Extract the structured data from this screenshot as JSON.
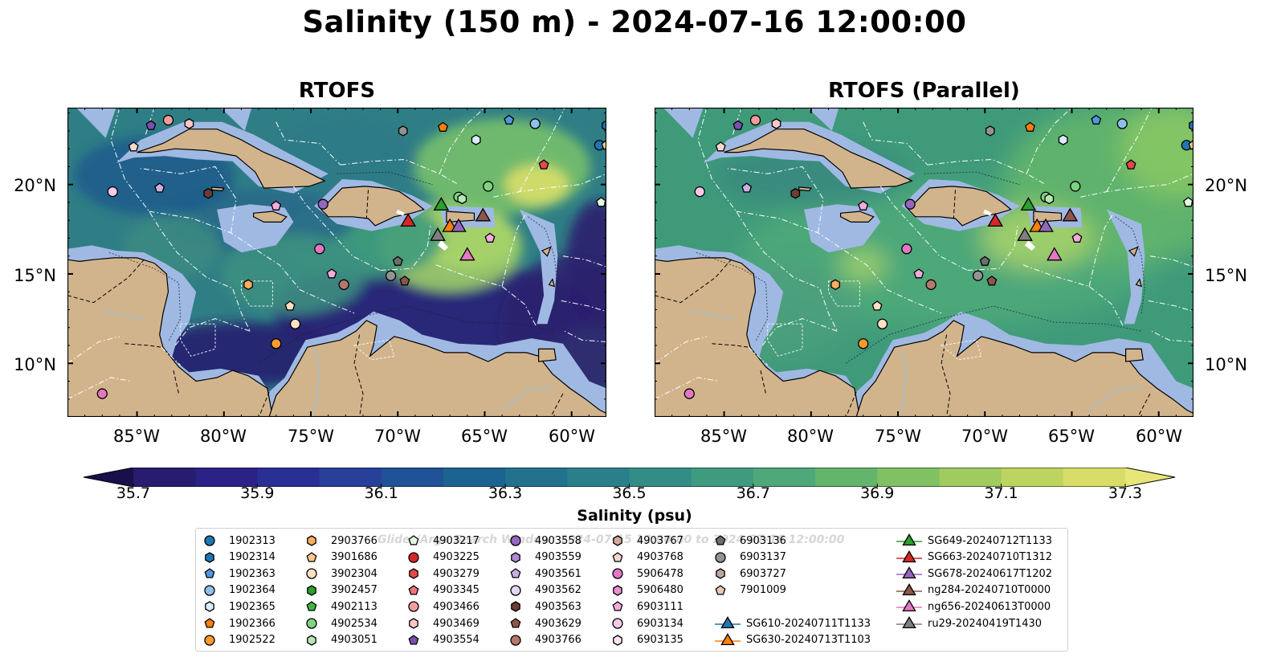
{
  "title": "Salinity (150 m) - 2024-07-16 12:00:00",
  "panels": [
    {
      "title": "RTOFS"
    },
    {
      "title": "RTOFS (Parallel)"
    }
  ],
  "axes": {
    "lon_labels": [
      "85°W",
      "80°W",
      "75°W",
      "70°W",
      "65°W",
      "60°W"
    ],
    "lat_labels": [
      "20°N",
      "15°N",
      "10°N"
    ],
    "lon_range": [
      -89,
      -58
    ],
    "lat_range": [
      7,
      24.3
    ]
  },
  "colorbar": {
    "label": "Salinity (psu)",
    "ticks": [
      "35.7",
      "35.9",
      "36.1",
      "36.3",
      "36.5",
      "36.7",
      "36.9",
      "37.1",
      "37.3"
    ],
    "range": [
      35.7,
      37.3
    ],
    "colormap": "haline",
    "extend": "both"
  },
  "watermark": "Glider/Argo Search Window: 2024-07-15 12:00:00 to 2024-07-16 12:00:00",
  "colors": {
    "land": "#d2b48c",
    "shelf_water": "#9fb9e3",
    "deep_low_salinity": "#2a1c78",
    "high_salinity": "#e3e168"
  },
  "legend": [
    {
      "label": "1902313",
      "shape": "circle",
      "color": "#1f77b4"
    },
    {
      "label": "1902314",
      "shape": "hexagon",
      "color": "#1f77b4"
    },
    {
      "label": "1902363",
      "shape": "pentagon",
      "color": "#4f97dd"
    },
    {
      "label": "1902364",
      "shape": "circle",
      "color": "#8ec1ea"
    },
    {
      "label": "1902365",
      "shape": "hexagon",
      "color": "#d8ecfb"
    },
    {
      "label": "1902366",
      "shape": "pentagon",
      "color": "#ff7f0e"
    },
    {
      "label": "1902522",
      "shape": "circle",
      "color": "#ff9a2e"
    },
    {
      "label": "2903766",
      "shape": "hexagon",
      "color": "#ffad5f"
    },
    {
      "label": "3901686",
      "shape": "pentagon",
      "color": "#ffc890"
    },
    {
      "label": "3902304",
      "shape": "circle",
      "color": "#ffe2c4"
    },
    {
      "label": "3902457",
      "shape": "hexagon",
      "color": "#2ca02c"
    },
    {
      "label": "4902113",
      "shape": "pentagon",
      "color": "#3fb63f"
    },
    {
      "label": "4902534",
      "shape": "circle",
      "color": "#7fd37f"
    },
    {
      "label": "4903051",
      "shape": "hexagon",
      "color": "#b5e8b5"
    },
    {
      "label": "4903217",
      "shape": "pentagon",
      "color": "#e5f8e0"
    },
    {
      "label": "4903225",
      "shape": "circle",
      "color": "#d62728"
    },
    {
      "label": "4903279",
      "shape": "hexagon",
      "color": "#e34a4a"
    },
    {
      "label": "4903345",
      "shape": "pentagon",
      "color": "#ee7575"
    },
    {
      "label": "4903466",
      "shape": "circle",
      "color": "#f49c9c"
    },
    {
      "label": "4903469",
      "shape": "hexagon",
      "color": "#fbc7c7"
    },
    {
      "label": "4903554",
      "shape": "pentagon",
      "color": "#7b4fb0"
    },
    {
      "label": "4903558",
      "shape": "circle",
      "color": "#9467bd"
    },
    {
      "label": "4903559",
      "shape": "hexagon",
      "color": "#ae8ad0"
    },
    {
      "label": "4903561",
      "shape": "pentagon",
      "color": "#c9b0e2"
    },
    {
      "label": "4903562",
      "shape": "circle",
      "color": "#e4d6f2"
    },
    {
      "label": "4903563",
      "shape": "hexagon",
      "color": "#6b3e32"
    },
    {
      "label": "4903629",
      "shape": "pentagon",
      "color": "#8c564b"
    },
    {
      "label": "4903766",
      "shape": "circle",
      "color": "#b2796c"
    },
    {
      "label": "4903767",
      "shape": "hexagon",
      "color": "#d4a99c"
    },
    {
      "label": "4903768",
      "shape": "pentagon",
      "color": "#f2d8cc"
    },
    {
      "label": "5906478",
      "shape": "circle",
      "color": "#e377c2"
    },
    {
      "label": "5906480",
      "shape": "hexagon",
      "color": "#ea8fcf"
    },
    {
      "label": "6903111",
      "shape": "pentagon",
      "color": "#f2acdc"
    },
    {
      "label": "6903134",
      "shape": "circle",
      "color": "#f7c8e8"
    },
    {
      "label": "6903135",
      "shape": "hexagon",
      "color": "#fde4f4"
    },
    {
      "label": "6903136",
      "shape": "pentagon",
      "color": "#6e6e6e"
    },
    {
      "label": "6903137",
      "shape": "circle",
      "color": "#939393"
    },
    {
      "label": "6903727",
      "shape": "hexagon",
      "color": "#b8a8a0"
    },
    {
      "label": "7901009",
      "shape": "pentagon",
      "color": "#e8c8b8"
    },
    {
      "label": "SG610-20240711T1133",
      "shape": "triangle",
      "color": "#1f77b4"
    },
    {
      "label": "SG630-20240713T1103",
      "shape": "triangle",
      "color": "#ff7f0e"
    },
    {
      "label": "SG649-20240712T1133",
      "shape": "triangle",
      "color": "#2ca02c"
    },
    {
      "label": "SG663-20240710T1312",
      "shape": "triangle",
      "color": "#d62728"
    },
    {
      "label": "SG678-20240617T1202",
      "shape": "triangle",
      "color": "#9467bd"
    },
    {
      "label": "ng284-20240710T0000",
      "shape": "triangle",
      "color": "#8c564b"
    },
    {
      "label": "ng656-20240613T0000",
      "shape": "triangle",
      "color": "#e377c2"
    },
    {
      "label": "ru29-20240419T1430",
      "shape": "triangle",
      "color": "#7f7f7f"
    }
  ],
  "markers": [
    {
      "lon": -84.2,
      "lat": 23.3,
      "shape": "pentagon",
      "color": "#7b4fb0"
    },
    {
      "lon": -83.2,
      "lat": 23.6,
      "shape": "circle",
      "color": "#f49c9c"
    },
    {
      "lon": -82.0,
      "lat": 23.4,
      "shape": "hexagon",
      "color": "#fbc7c7"
    },
    {
      "lon": -85.2,
      "lat": 22.1,
      "shape": "pentagon",
      "color": "#f2d8cc"
    },
    {
      "lon": -86.4,
      "lat": 19.6,
      "shape": "circle",
      "color": "#f7c8e8"
    },
    {
      "lon": -83.7,
      "lat": 19.8,
      "shape": "pentagon",
      "color": "#c9b0e2"
    },
    {
      "lon": -80.9,
      "lat": 19.5,
      "shape": "hexagon",
      "color": "#6b3e32"
    },
    {
      "lon": -77.0,
      "lat": 18.8,
      "shape": "pentagon",
      "color": "#f2acdc"
    },
    {
      "lon": -74.3,
      "lat": 18.9,
      "shape": "circle",
      "color": "#9467bd"
    },
    {
      "lon": -69.7,
      "lat": 23.0,
      "shape": "hexagon",
      "color": "#939393"
    },
    {
      "lon": -67.4,
      "lat": 23.2,
      "shape": "pentagon",
      "color": "#ff7f0e"
    },
    {
      "lon": -65.5,
      "lat": 22.5,
      "shape": "hexagon",
      "color": "#d8ecfb"
    },
    {
      "lon": -63.6,
      "lat": 23.6,
      "shape": "pentagon",
      "color": "#4f97dd"
    },
    {
      "lon": -62.1,
      "lat": 23.4,
      "shape": "circle",
      "color": "#8ec1ea"
    },
    {
      "lon": -58.0,
      "lat": 23.3,
      "shape": "hexagon",
      "color": "#1f77b4"
    },
    {
      "lon": -58.4,
      "lat": 22.2,
      "shape": "circle",
      "color": "#1f77b4"
    },
    {
      "lon": -58.0,
      "lat": 22.2,
      "shape": "pentagon",
      "color": "#ffc890"
    },
    {
      "lon": -61.6,
      "lat": 21.1,
      "shape": "pentagon",
      "color": "#e34a4a"
    },
    {
      "lon": -64.8,
      "lat": 19.9,
      "shape": "circle",
      "color": "#7fd37f"
    },
    {
      "lon": -66.5,
      "lat": 19.3,
      "shape": "circle",
      "color": "#7fd37f"
    },
    {
      "lon": -66.3,
      "lat": 19.2,
      "shape": "hexagon",
      "color": "#b5e8b5"
    },
    {
      "lon": -58.3,
      "lat": 19.0,
      "shape": "pentagon",
      "color": "#e5f8e0"
    },
    {
      "lon": -74.5,
      "lat": 16.4,
      "shape": "circle",
      "color": "#e377c2"
    },
    {
      "lon": -73.8,
      "lat": 15.0,
      "shape": "pentagon",
      "color": "#f2acdc"
    },
    {
      "lon": -73.1,
      "lat": 14.4,
      "shape": "circle",
      "color": "#b2796c"
    },
    {
      "lon": -78.6,
      "lat": 14.4,
      "shape": "hexagon",
      "color": "#ffad5f"
    },
    {
      "lon": -76.2,
      "lat": 13.2,
      "shape": "pentagon",
      "color": "#ffe2c4"
    },
    {
      "lon": -75.9,
      "lat": 12.2,
      "shape": "circle",
      "color": "#ffe2c4"
    },
    {
      "lon": -70.0,
      "lat": 15.7,
      "shape": "pentagon",
      "color": "#6e6e6e"
    },
    {
      "lon": -70.4,
      "lat": 14.9,
      "shape": "circle",
      "color": "#939393"
    },
    {
      "lon": -69.6,
      "lat": 14.6,
      "shape": "pentagon",
      "color": "#8c564b"
    },
    {
      "lon": -64.7,
      "lat": 17.0,
      "shape": "pentagon",
      "color": "#f2acdc"
    },
    {
      "lon": -77.0,
      "lat": 11.1,
      "shape": "circle",
      "color": "#ff9a2e"
    },
    {
      "lon": -87.0,
      "lat": 8.3,
      "shape": "circle",
      "color": "#e377c2"
    },
    {
      "lon": -67.5,
      "lat": 18.8,
      "shape": "triangle",
      "color": "#2ca02c"
    },
    {
      "lon": -69.4,
      "lat": 17.9,
      "shape": "triangle",
      "color": "#d62728"
    },
    {
      "lon": -65.1,
      "lat": 18.2,
      "shape": "triangle",
      "color": "#8c564b"
    },
    {
      "lon": -67.0,
      "lat": 17.6,
      "shape": "triangle",
      "color": "#ff7f0e"
    },
    {
      "lon": -66.5,
      "lat": 17.6,
      "shape": "triangle",
      "color": "#9467bd"
    },
    {
      "lon": -67.7,
      "lat": 17.1,
      "shape": "triangle",
      "color": "#7f7f7f"
    },
    {
      "lon": -66.0,
      "lat": 16.0,
      "shape": "triangle",
      "color": "#e377c2"
    }
  ]
}
